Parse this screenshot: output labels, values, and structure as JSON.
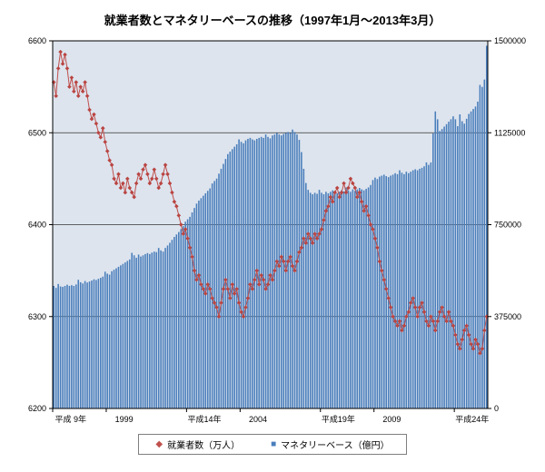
{
  "title": "就業者数とマネタリーベースの推移（1997年1月～2013年3月）",
  "legend": {
    "series1": "就業者数（万人）",
    "series2": "マネタリーベース（億円）"
  },
  "colors": {
    "line": "#c0504d",
    "marker": "#b94441",
    "bar": "#4a7ebb",
    "plot_bg": "#dde4ee",
    "grid": "#333333",
    "axis": "#000000"
  },
  "chart_data": {
    "type": "bar",
    "subtype": "monthly bars with overlaid line, dual y-axis",
    "title": "就業者数とマネタリーベースの推移（1997年1月～2013年3月）",
    "x_unit": "month",
    "x_start": "1997-01",
    "x_end": "2013-03",
    "grid": "horizontal",
    "legend_position": "bottom",
    "left_axis": {
      "min": 6200,
      "max": 6600,
      "ticks": [
        6200,
        6300,
        6400,
        6500,
        6600
      ]
    },
    "right_axis": {
      "min": 0,
      "max": 1500000,
      "ticks": [
        0,
        375000,
        750000,
        1125000,
        1500000
      ]
    },
    "x_ticks": [
      {
        "label": "平成 9年",
        "index": 0
      },
      {
        "label": "1999",
        "index": 24
      },
      {
        "label": "平成14年",
        "index": 60
      },
      {
        "label": "2004",
        "index": 84
      },
      {
        "label": "平成19年",
        "index": 120
      },
      {
        "label": "2009",
        "index": 144
      },
      {
        "label": "平成24年",
        "index": 180
      }
    ],
    "series": [
      {
        "name": "就業者数（万人）",
        "type": "line",
        "axis": "left",
        "values": [
          6555,
          6540,
          6570,
          6588,
          6575,
          6585,
          6570,
          6550,
          6560,
          6545,
          6555,
          6540,
          6550,
          6545,
          6555,
          6540,
          6525,
          6515,
          6520,
          6510,
          6500,
          6495,
          6505,
          6490,
          6480,
          6470,
          6465,
          6450,
          6445,
          6455,
          6440,
          6445,
          6435,
          6450,
          6440,
          6435,
          6430,
          6445,
          6455,
          6450,
          6460,
          6465,
          6455,
          6445,
          6450,
          6460,
          6450,
          6440,
          6445,
          6455,
          6465,
          6455,
          6445,
          6435,
          6425,
          6420,
          6410,
          6400,
          6390,
          6395,
          6385,
          6375,
          6365,
          6350,
          6340,
          6345,
          6335,
          6330,
          6325,
          6335,
          6330,
          6320,
          6315,
          6310,
          6300,
          6315,
          6330,
          6340,
          6330,
          6320,
          6335,
          6325,
          6330,
          6315,
          6305,
          6300,
          6310,
          6320,
          6335,
          6330,
          6340,
          6350,
          6335,
          6345,
          6340,
          6330,
          6335,
          6345,
          6340,
          6350,
          6360,
          6355,
          6365,
          6360,
          6350,
          6360,
          6365,
          6355,
          6350,
          6360,
          6370,
          6375,
          6385,
          6380,
          6390,
          6385,
          6380,
          6390,
          6385,
          6390,
          6395,
          6405,
          6415,
          6420,
          6430,
          6425,
          6435,
          6440,
          6430,
          6435,
          6445,
          6435,
          6440,
          6450,
          6445,
          6440,
          6430,
          6435,
          6425,
          6415,
          6420,
          6410,
          6400,
          6395,
          6385,
          6375,
          6360,
          6350,
          6340,
          6330,
          6320,
          6310,
          6300,
          6295,
          6290,
          6295,
          6285,
          6290,
          6300,
          6305,
          6315,
          6320,
          6310,
          6300,
          6310,
          6315,
          6305,
          6295,
          6290,
          6300,
          6295,
          6285,
          6295,
          6305,
          6310,
          6300,
          6295,
          6305,
          6295,
          6290,
          6280,
          6270,
          6265,
          6275,
          6285,
          6290,
          6280,
          6270,
          6265,
          6275,
          6270,
          6260,
          6265,
          6285,
          6300
        ]
      },
      {
        "name": "マネタリーベース（億円）",
        "type": "bar",
        "axis": "right",
        "values": [
          500000,
          492000,
          508000,
          498000,
          496000,
          500000,
          505000,
          500000,
          503000,
          500000,
          506000,
          525000,
          515000,
          510000,
          520000,
          514000,
          518000,
          522000,
          527000,
          524000,
          529000,
          533000,
          538000,
          558000,
          550000,
          546000,
          560000,
          566000,
          572000,
          578000,
          584000,
          590000,
          596000,
          602000,
          608000,
          635000,
          625000,
          615000,
          628000,
          620000,
          625000,
          630000,
          634000,
          630000,
          636000,
          640000,
          638000,
          655000,
          645000,
          640000,
          655000,
          665000,
          676000,
          688000,
          700000,
          710000,
          720000,
          732000,
          744000,
          762000,
          772000,
          782000,
          800000,
          818000,
          836000,
          848000,
          858000,
          868000,
          878000,
          888000,
          898000,
          918000,
          928000,
          938000,
          958000,
          978000,
          998000,
          1018000,
          1038000,
          1048000,
          1058000,
          1068000,
          1078000,
          1098000,
          1088000,
          1082000,
          1094000,
          1100000,
          1104000,
          1098000,
          1094000,
          1100000,
          1104000,
          1108000,
          1104000,
          1118000,
          1108000,
          1102000,
          1114000,
          1118000,
          1124000,
          1118000,
          1114000,
          1120000,
          1124000,
          1128000,
          1124000,
          1138000,
          1128000,
          1118000,
          1096000,
          1046000,
          978000,
          920000,
          892000,
          880000,
          874000,
          880000,
          876000,
          892000,
          880000,
          874000,
          884000,
          878000,
          884000,
          890000,
          884000,
          878000,
          884000,
          890000,
          886000,
          902000,
          890000,
          884000,
          894000,
          888000,
          894000,
          900000,
          894000,
          890000,
          896000,
          902000,
          912000,
          932000,
          942000,
          936000,
          946000,
          950000,
          954000,
          948000,
          944000,
          950000,
          954000,
          960000,
          956000,
          972000,
          962000,
          956000,
          966000,
          960000,
          966000,
          972000,
          976000,
          972000,
          978000,
          982000,
          988000,
          1004000,
          994000,
          1004000,
          1122000,
          1212000,
          1180000,
          1132000,
          1140000,
          1150000,
          1160000,
          1170000,
          1180000,
          1192000,
          1180000,
          1152000,
          1200000,
          1172000,
          1162000,
          1182000,
          1202000,
          1212000,
          1222000,
          1232000,
          1252000,
          1320000,
          1312000,
          1342000,
          1480000
        ]
      }
    ]
  }
}
